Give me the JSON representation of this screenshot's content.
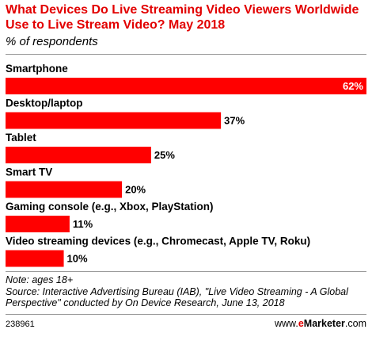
{
  "header": {
    "title": "What Devices Do Live Streaming Video Viewers Worldwide Use to Live Stream Video? May 2018",
    "subtitle": "% of respondents"
  },
  "chart_data": {
    "type": "bar",
    "orientation": "horizontal",
    "title": "What Devices Do Live Streaming Video Viewers Worldwide Use to Live Stream Video? May 2018",
    "subtitle": "% of respondents",
    "categories": [
      "Smartphone",
      "Desktop/laptop",
      "Tablet",
      "Smart TV",
      "Gaming console (e.g., Xbox, PlayStation)",
      "Video streaming devices (e.g., Chromecast, Apple TV, Roku)"
    ],
    "values": [
      62,
      37,
      25,
      20,
      11,
      10
    ],
    "value_labels": [
      "62%",
      "37%",
      "25%",
      "20%",
      "11%",
      "10%"
    ],
    "xlim": [
      0,
      62
    ],
    "bar_color": "#ff0000",
    "grid": false
  },
  "footer": {
    "note": "Note: ages 18+",
    "source": "Source: Interactive Advertising Bureau (IAB), \"Live Video Streaming - A Global Perspective\" conducted by On Device Research, June 13, 2018",
    "chart_id": "238961",
    "brand_prefix": "www.",
    "brand_e": "e",
    "brand_name": "Marketer",
    "brand_suffix": ".com"
  }
}
